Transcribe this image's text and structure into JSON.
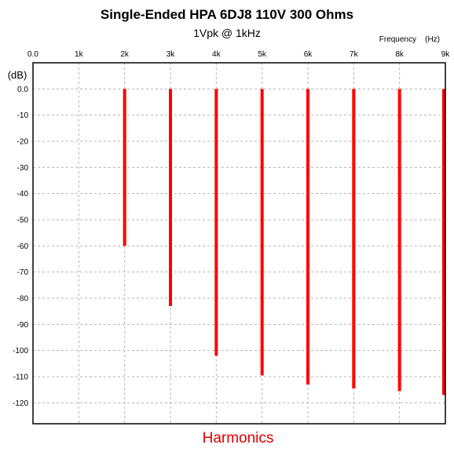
{
  "chart_data": {
    "type": "bar",
    "title": "Single-Ended HPA 6DJ8 110V 300 Ohms",
    "subtitle": "1Vpk @ 1kHz",
    "xlabel": "Frequency    (Hz)",
    "ylabel": "(dB)",
    "caption": "Harmonics",
    "xlim": [
      0,
      9000
    ],
    "ylim": [
      -128,
      10
    ],
    "x_ticks": [
      {
        "value": 0,
        "label": "0.0"
      },
      {
        "value": 1000,
        "label": "1k"
      },
      {
        "value": 2000,
        "label": "2k"
      },
      {
        "value": 3000,
        "label": "3k"
      },
      {
        "value": 4000,
        "label": "4k"
      },
      {
        "value": 5000,
        "label": "5k"
      },
      {
        "value": 6000,
        "label": "6k"
      },
      {
        "value": 7000,
        "label": "7k"
      },
      {
        "value": 8000,
        "label": "8k"
      },
      {
        "value": 9000,
        "label": "9k"
      }
    ],
    "y_ticks": [
      {
        "value": 0,
        "label": "0.0"
      },
      {
        "value": -10,
        "label": "-10"
      },
      {
        "value": -20,
        "label": "-20"
      },
      {
        "value": -30,
        "label": "-30"
      },
      {
        "value": -40,
        "label": "-40"
      },
      {
        "value": -50,
        "label": "-50"
      },
      {
        "value": -60,
        "label": "-60"
      },
      {
        "value": -70,
        "label": "-70"
      },
      {
        "value": -80,
        "label": "-80"
      },
      {
        "value": -90,
        "label": "-90"
      },
      {
        "value": -100,
        "label": "-100"
      },
      {
        "value": -110,
        "label": "-110"
      },
      {
        "value": -120,
        "label": "-120"
      }
    ],
    "grid": true,
    "bar_color": "#ff0000",
    "series": [
      {
        "x": [
          2000,
          3000,
          4000,
          5000,
          6000,
          7000,
          8000,
          9000
        ],
        "values": [
          -60,
          -83,
          -102,
          -109.5,
          -113,
          -114.5,
          -115.5,
          -117
        ]
      }
    ]
  }
}
